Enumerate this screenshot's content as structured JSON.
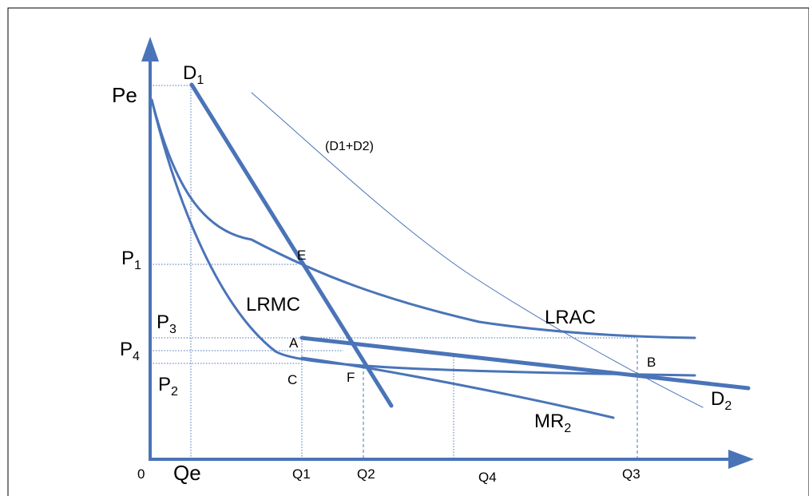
{
  "colors": {
    "curve": "#4a74b8",
    "frame": "#000000",
    "text": "#000000"
  },
  "axes": {
    "origin": "0"
  },
  "price_labels": {
    "pe": "Pe",
    "p1": {
      "main": "P",
      "sub": "1"
    },
    "p3": {
      "main": "P",
      "sub": "3"
    },
    "p4": {
      "main": "P",
      "sub": "4"
    },
    "p2": {
      "main": "P",
      "sub": "2"
    }
  },
  "quantity_labels": {
    "qe": "Qe",
    "q1": "Q1",
    "q2": "Q2",
    "q4": "Q4",
    "q3": "Q3"
  },
  "curve_labels": {
    "d1": {
      "main": "D",
      "sub": "1"
    },
    "d2": {
      "main": "D",
      "sub": "2"
    },
    "sum": "(D1+D2)",
    "lrac": "LRAC",
    "lrmc": "LRMC",
    "mr2": {
      "main": "MR",
      "sub": "2"
    }
  },
  "point_labels": {
    "e": "E",
    "a": "A",
    "c": "C",
    "f": "F",
    "b": "B"
  }
}
